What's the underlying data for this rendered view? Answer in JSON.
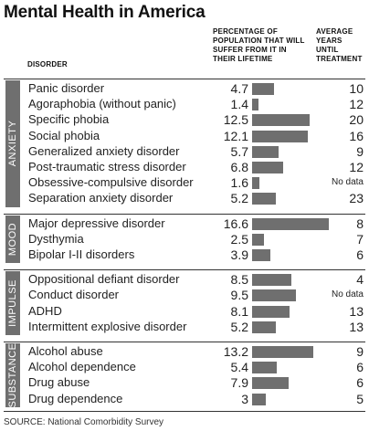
{
  "title": "Mental Health in America",
  "headers": {
    "disorder": "DISORDER",
    "percentage_lines": [
      "PERCENTAGE OF",
      "POPULATION THAT WILL",
      "SUFFER FROM IT IN",
      "THEIR LIFETIME"
    ],
    "years_lines": [
      "AVERAGE",
      "YEARS",
      "UNTIL",
      "TREATMENT"
    ]
  },
  "source": "SOURCE: National Comorbidity Survey",
  "colors": {
    "bar": "#6f6f6f",
    "group_label_bg": "#6f6f6f",
    "rule": "#333333"
  },
  "chart_data": {
    "type": "bar",
    "orientation": "horizontal",
    "title": "Mental Health in America",
    "value_label": "PERCENTAGE OF POPULATION THAT WILL SUFFER FROM IT IN THEIR LIFETIME",
    "extra_label": "AVERAGE YEARS UNTIL TREATMENT",
    "groups": [
      {
        "name": "ANXIETY",
        "rows": [
          {
            "disorder": "Panic disorder",
            "pct": 4.7,
            "years": "10"
          },
          {
            "disorder": "Agoraphobia (without panic)",
            "pct": 1.4,
            "years": "12"
          },
          {
            "disorder": "Specific phobia",
            "pct": 12.5,
            "years": "20"
          },
          {
            "disorder": "Social phobia",
            "pct": 12.1,
            "years": "16"
          },
          {
            "disorder": "Generalized anxiety disorder",
            "pct": 5.7,
            "years": "9"
          },
          {
            "disorder": "Post-traumatic stress disorder",
            "pct": 6.8,
            "years": "12"
          },
          {
            "disorder": "Obsessive-compulsive disorder",
            "pct": 1.6,
            "years": "No data"
          },
          {
            "disorder": "Separation anxiety disorder",
            "pct": 5.2,
            "years": "23"
          }
        ]
      },
      {
        "name": "MOOD",
        "rows": [
          {
            "disorder": "Major depressive disorder",
            "pct": 16.6,
            "years": "8"
          },
          {
            "disorder": "Dysthymia",
            "pct": 2.5,
            "years": "7"
          },
          {
            "disorder": "Bipolar I-II disorders",
            "pct": 3.9,
            "years": "6"
          }
        ]
      },
      {
        "name": "IMPULSE",
        "rows": [
          {
            "disorder": "Oppositional defiant disorder",
            "pct": 8.5,
            "years": "4"
          },
          {
            "disorder": "Conduct disorder",
            "pct": 9.5,
            "years": "No data"
          },
          {
            "disorder": "ADHD",
            "pct": 8.1,
            "years": "13"
          },
          {
            "disorder": "Intermittent explosive disorder",
            "pct": 5.2,
            "years": "13"
          }
        ]
      },
      {
        "name": "SUBSTANCE",
        "rows": [
          {
            "disorder": "Alcohol abuse",
            "pct": 13.2,
            "years": "9"
          },
          {
            "disorder": "Alcohol dependence",
            "pct": 5.4,
            "years": "6"
          },
          {
            "disorder": "Drug abuse",
            "pct": 7.9,
            "years": "6"
          },
          {
            "disorder": "Drug dependence",
            "pct": 3,
            "years": "5"
          }
        ]
      }
    ]
  }
}
